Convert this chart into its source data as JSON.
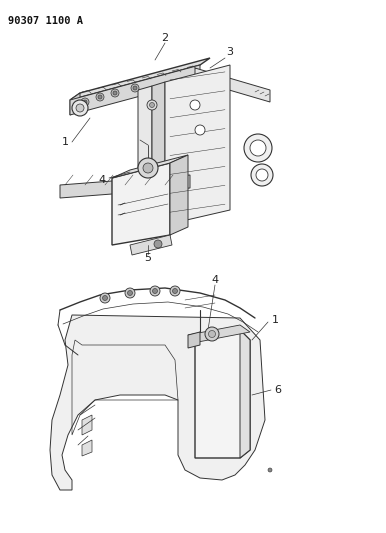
{
  "title": "90307 1100 A",
  "bg_color": "#ffffff",
  "lc": "#555555",
  "lc_dark": "#333333",
  "fig_width": 3.86,
  "fig_height": 5.33,
  "dpi": 100
}
